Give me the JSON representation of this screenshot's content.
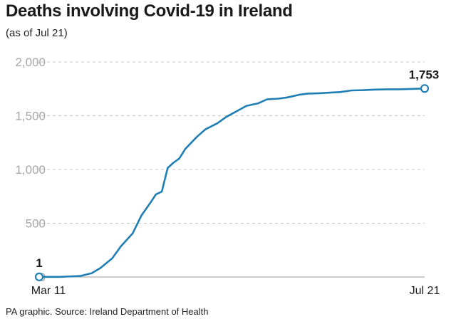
{
  "chart_data": {
    "type": "line",
    "title": "Deaths involving Covid-19 in Ireland",
    "subtitle": "(as of Jul 21)",
    "source": "PA graphic. Source: Ireland Department of Health",
    "x_tick_labels": [
      "Mar 11",
      "Jul 21"
    ],
    "x_range": [
      "Mar 11",
      "Jul 21"
    ],
    "ylim": [
      0,
      2000
    ],
    "y_ticks": [
      0,
      500,
      1000,
      1500,
      2000
    ],
    "y_tick_labels": [
      "0",
      "500",
      "1,000",
      "1,500",
      "2,000"
    ],
    "grid": "horizontal dashed",
    "line_color": "#1f7fb4",
    "series": [
      {
        "x": [
          "Mar 11",
          "Mar 18",
          "Mar 25",
          "Mar 29",
          "Apr 1",
          "Apr 5",
          "Apr 8",
          "Apr 12",
          "Apr 15",
          "Apr 18",
          "Apr 20",
          "Apr 22",
          "Apr 24",
          "Apr 26",
          "Apr 28",
          "Apr 30",
          "May 4",
          "May 7",
          "May 11",
          "May 14",
          "May 18",
          "May 21",
          "May 25",
          "May 28",
          "Jun 1",
          "Jun 4",
          "Jun 8",
          "Jun 11",
          "Jun 15",
          "Jun 18",
          "Jun 22",
          "Jun 26",
          "Jun 30",
          "Jul 4",
          "Jul 8",
          "Jul 12",
          "Jul 16",
          "Jul 21"
        ],
        "values": [
          1,
          1,
          9,
          36,
          85,
          174,
          287,
          406,
          571,
          687,
          769,
          794,
          1014,
          1063,
          1102,
          1190,
          1303,
          1375,
          1429,
          1488,
          1547,
          1592,
          1615,
          1652,
          1659,
          1670,
          1695,
          1706,
          1709,
          1714,
          1720,
          1735,
          1738,
          1743,
          1746,
          1746,
          1749,
          1753
        ]
      }
    ],
    "data_labels": [
      {
        "text": "1"
      },
      {
        "text": "1,753"
      }
    ]
  }
}
